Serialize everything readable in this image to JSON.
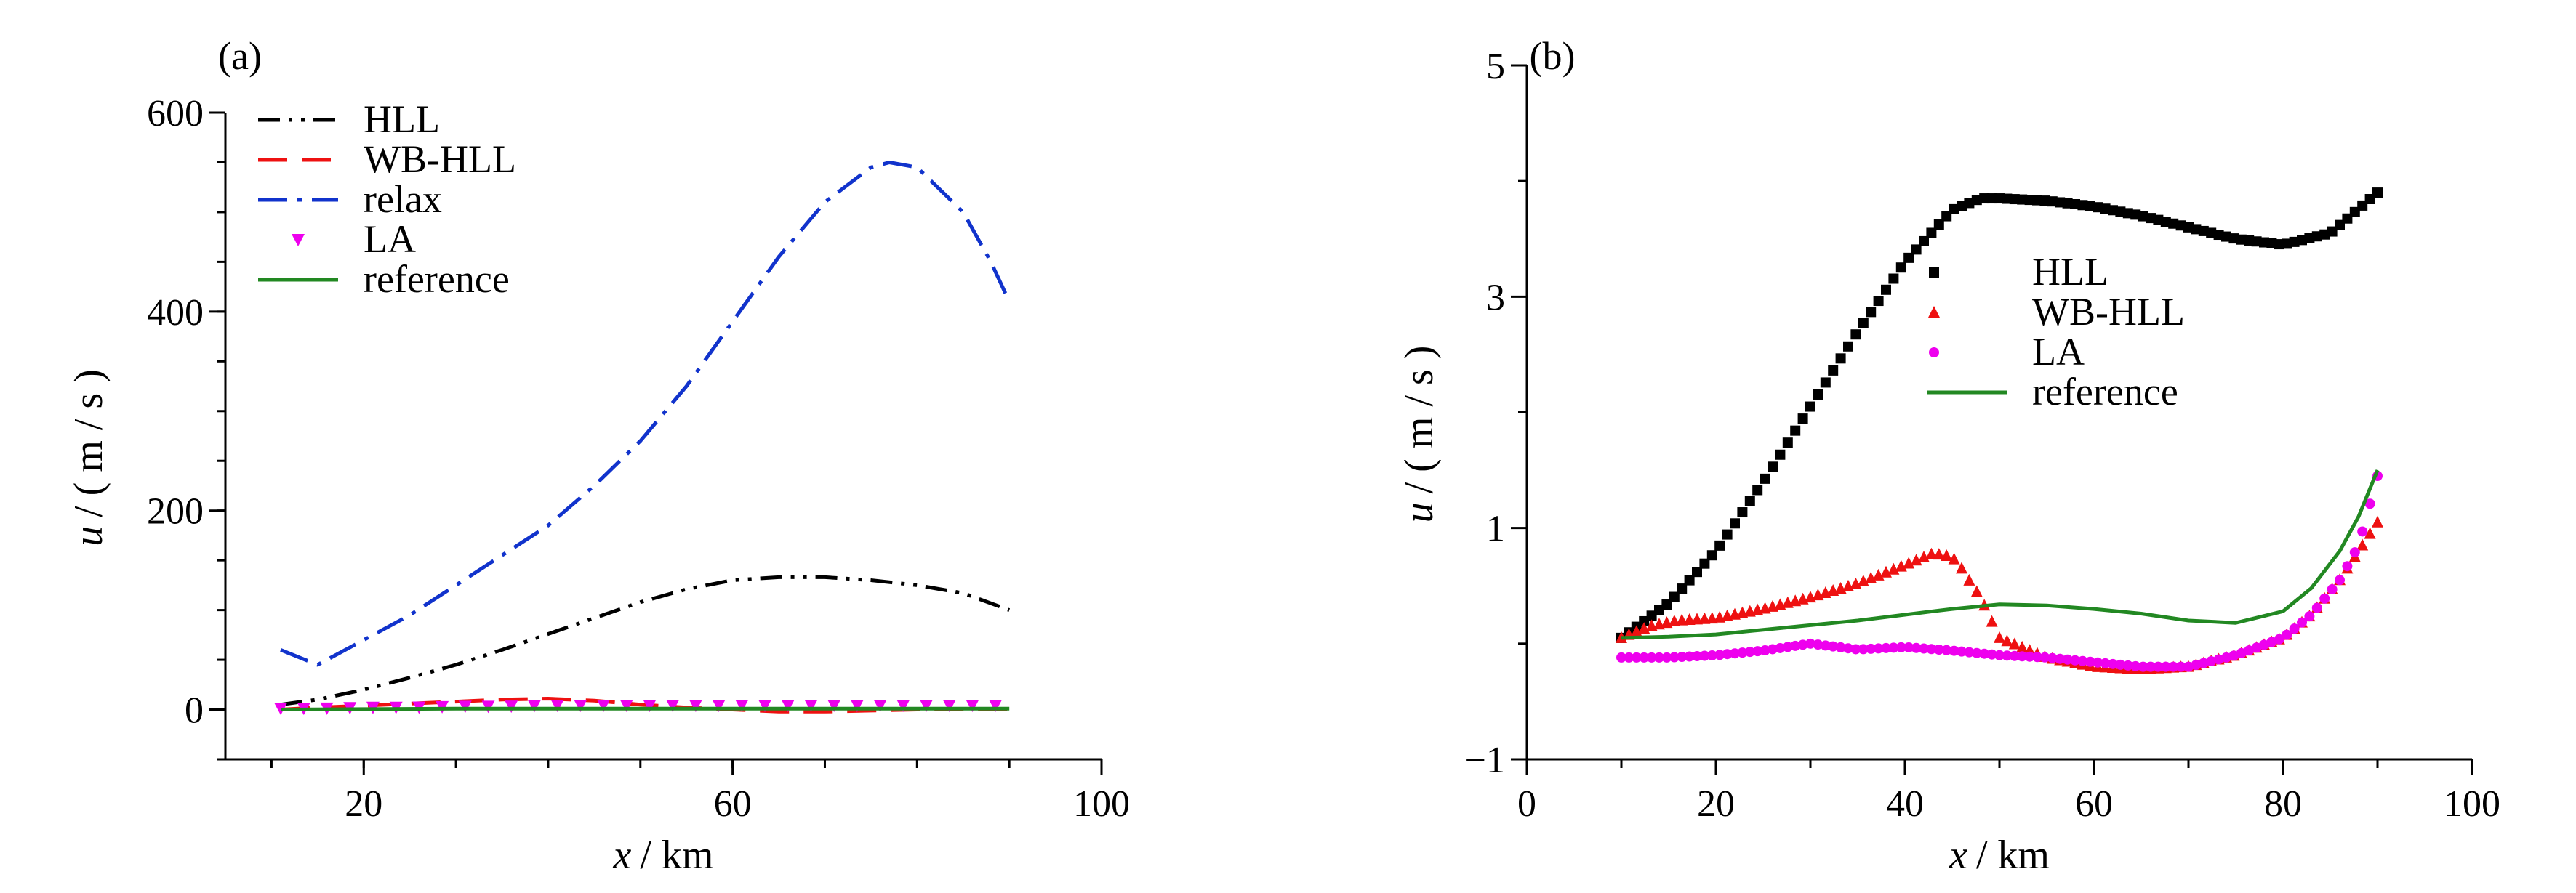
{
  "chart_data": [
    {
      "type": "line",
      "panel_label": "(a)",
      "xlabel_var": "x",
      "xlabel_unit": "/ km",
      "ylabel_var": "u",
      "ylabel_unit": "/ ( m / s )",
      "xlim": [
        5,
        100
      ],
      "ylim": [
        -50,
        600
      ],
      "xticks": [
        20,
        60,
        100
      ],
      "xticks_minor": [
        10,
        20,
        30,
        40,
        50,
        60,
        70,
        80,
        90,
        100
      ],
      "yticks": [
        0,
        200,
        400,
        600
      ],
      "yticks_minor": [
        -50,
        0,
        50,
        100,
        150,
        200,
        250,
        300,
        350,
        400,
        450,
        500,
        550,
        600
      ],
      "legend_position": "top-left",
      "series": [
        {
          "name": "HLL",
          "color": "#000000",
          "style": "dashdotdot",
          "marker": "none",
          "x": [
            11,
            15,
            20,
            25,
            30,
            35,
            40,
            45,
            50,
            55,
            60,
            65,
            70,
            75,
            80,
            85,
            90
          ],
          "y": [
            5,
            10,
            20,
            32,
            45,
            60,
            76,
            92,
            108,
            121,
            130,
            133,
            133,
            130,
            125,
            117,
            100
          ]
        },
        {
          "name": "WB-HLL",
          "color": "#ee1111",
          "style": "dash",
          "marker": "none",
          "x": [
            11,
            15,
            20,
            25,
            30,
            35,
            40,
            45,
            50,
            55,
            60,
            65,
            70,
            75,
            80,
            85,
            90
          ],
          "y": [
            0,
            2,
            4,
            6,
            8,
            10,
            11,
            9,
            5,
            2,
            0,
            -2,
            -2,
            -1,
            0,
            0,
            0
          ]
        },
        {
          "name": "relax",
          "color": "#1133cc",
          "style": "dashdot",
          "marker": "none",
          "x": [
            11,
            15,
            20,
            25,
            30,
            35,
            40,
            45,
            50,
            55,
            60,
            65,
            70,
            75,
            77,
            80,
            85,
            88,
            90
          ],
          "y": [
            60,
            45,
            70,
            95,
            125,
            155,
            185,
            225,
            270,
            325,
            390,
            455,
            510,
            545,
            550,
            545,
            500,
            450,
            410
          ]
        },
        {
          "name": "LA",
          "color": "#ee00ee",
          "style": "none",
          "marker": "triangle-down",
          "x": [
            11,
            15,
            20,
            25,
            30,
            35,
            40,
            45,
            50,
            55,
            60,
            65,
            70,
            75,
            80,
            85,
            90
          ],
          "y": [
            1,
            1,
            2,
            2,
            3,
            3,
            4,
            4,
            4,
            4,
            4,
            4,
            4,
            4,
            4,
            4,
            4
          ]
        },
        {
          "name": "reference",
          "color": "#228822",
          "style": "solid",
          "marker": "none",
          "x": [
            11,
            20,
            30,
            40,
            50,
            60,
            70,
            80,
            90
          ],
          "y": [
            0,
            0.5,
            1,
            1,
            1,
            1,
            1,
            1,
            1
          ]
        }
      ]
    },
    {
      "type": "line",
      "panel_label": "(b)",
      "xlabel_var": "x",
      "xlabel_unit": "/ km",
      "ylabel_var": "u",
      "ylabel_unit": "/ ( m / s )",
      "xlim": [
        0,
        100
      ],
      "ylim": [
        -1,
        5
      ],
      "xticks": [
        0,
        20,
        40,
        60,
        80,
        100
      ],
      "xticks_minor": [
        10,
        30,
        50,
        70,
        90
      ],
      "yticks": [
        -1,
        1,
        3,
        5
      ],
      "yticks_minor": [
        0,
        2,
        4
      ],
      "legend_position": "center-right",
      "series": [
        {
          "name": "HLL",
          "color": "#000000",
          "style": "none",
          "marker": "square",
          "x": [
            10,
            15,
            20,
            25,
            30,
            35,
            40,
            45,
            48,
            50,
            55,
            60,
            65,
            70,
            75,
            80,
            85,
            90
          ],
          "y": [
            0.05,
            0.35,
            0.8,
            1.4,
            2.05,
            2.7,
            3.3,
            3.75,
            3.85,
            3.85,
            3.83,
            3.78,
            3.7,
            3.6,
            3.5,
            3.45,
            3.55,
            3.9
          ]
        },
        {
          "name": "WB-HLL",
          "color": "#ee1111",
          "style": "none",
          "marker": "triangle",
          "x": [
            10,
            13,
            16,
            20,
            25,
            30,
            35,
            40,
            43,
            45,
            46,
            47,
            48,
            50,
            55,
            60,
            65,
            70,
            75,
            80,
            83,
            86,
            88,
            90
          ],
          "y": [
            0.05,
            0.15,
            0.2,
            0.22,
            0.3,
            0.4,
            0.52,
            0.68,
            0.78,
            0.75,
            0.65,
            0.52,
            0.4,
            0.05,
            -0.12,
            -0.2,
            -0.22,
            -0.2,
            -0.1,
            0.05,
            0.25,
            0.55,
            0.8,
            1.05
          ]
        },
        {
          "name": "LA",
          "color": "#ee00ee",
          "style": "none",
          "marker": "circle",
          "x": [
            10,
            15,
            20,
            25,
            30,
            35,
            40,
            45,
            50,
            55,
            60,
            65,
            70,
            75,
            80,
            83,
            86,
            88,
            90
          ],
          "y": [
            -0.12,
            -0.12,
            -0.1,
            -0.06,
            0.0,
            -0.05,
            -0.03,
            -0.06,
            -0.1,
            -0.12,
            -0.16,
            -0.2,
            -0.2,
            -0.1,
            0.05,
            0.25,
            0.55,
            0.85,
            1.45
          ]
        },
        {
          "name": "reference",
          "color": "#228822",
          "style": "solid",
          "marker": "none",
          "x": [
            10,
            15,
            20,
            25,
            30,
            35,
            40,
            45,
            50,
            55,
            60,
            65,
            70,
            75,
            80,
            83,
            86,
            88,
            90
          ],
          "y": [
            0.05,
            0.06,
            0.08,
            0.12,
            0.16,
            0.2,
            0.25,
            0.3,
            0.34,
            0.33,
            0.3,
            0.26,
            0.2,
            0.18,
            0.28,
            0.48,
            0.8,
            1.1,
            1.5
          ]
        }
      ]
    }
  ]
}
